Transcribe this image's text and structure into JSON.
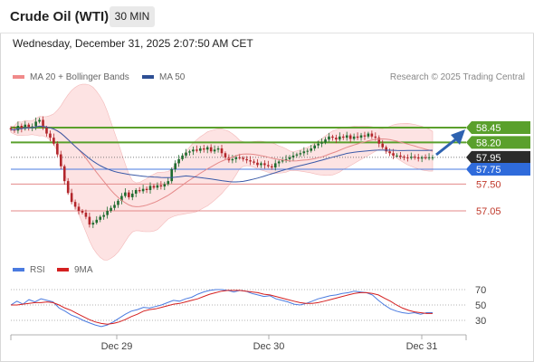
{
  "header": {
    "title": "Crude Oil (WTI)",
    "timeframe": "30 MIN",
    "datetime": "Wednesday, December 31, 2025 2:07:50 AM CET"
  },
  "legend": {
    "ma20_label": "MA 20 + Bollinger Bands",
    "ma50_label": "MA 50",
    "credit": "Research © 2025 Trading Central"
  },
  "rsi_legend": {
    "rsi_label": "RSI",
    "ma9_label": "9MA"
  },
  "colors": {
    "candle_up": "#1e6b2e",
    "candle_down": "#b3262b",
    "ma20": "#e58a8a",
    "bollinger_fill": "#fde3e3",
    "ma50": "#3a5aa8",
    "resistance": "#5aa02c",
    "pivot": "#4a7be0",
    "support": "#e38a8a",
    "last_price": "#333333",
    "arrow": "#2e62b0",
    "rsi": "#4a7be0",
    "rsi_ma9": "#d42020"
  },
  "chart_data": [
    {
      "type": "candlestick",
      "name": "price",
      "x_ticks": [
        "Dec 29",
        "Dec 30",
        "Dec 31"
      ],
      "ylim": [
        56.5,
        59.0
      ],
      "price_levels": [
        {
          "label": "58.45",
          "value": 58.45,
          "kind": "resistance"
        },
        {
          "label": "58.20",
          "value": 58.2,
          "kind": "resistance"
        },
        {
          "label": "57.95",
          "value": 57.95,
          "kind": "last"
        },
        {
          "label": "57.75",
          "value": 57.75,
          "kind": "pivot"
        },
        {
          "label": "57.50",
          "value": 57.5,
          "kind": "support"
        },
        {
          "label": "57.05",
          "value": 57.05,
          "kind": "support"
        }
      ],
      "close": [
        58.42,
        58.4,
        58.48,
        58.43,
        58.5,
        58.44,
        58.47,
        58.55,
        58.58,
        58.45,
        58.35,
        58.28,
        58.18,
        58.0,
        57.8,
        57.55,
        57.35,
        57.2,
        57.12,
        57.05,
        57.02,
        56.95,
        56.82,
        56.85,
        56.9,
        56.95,
        56.98,
        57.05,
        57.1,
        57.15,
        57.22,
        57.3,
        57.36,
        57.28,
        57.34,
        57.4,
        57.38,
        57.42,
        57.4,
        57.47,
        57.44,
        57.48,
        57.46,
        57.5,
        57.55,
        57.75,
        57.85,
        57.92,
        57.98,
        58.03,
        58.05,
        58.08,
        58.06,
        58.1,
        58.08,
        58.12,
        58.05,
        58.08,
        58.1,
        58.02,
        57.95,
        57.9,
        57.92,
        57.95,
        57.94,
        57.92,
        57.9,
        57.88,
        57.86,
        57.82,
        57.85,
        57.82,
        57.8,
        57.78,
        57.85,
        57.88,
        57.9,
        57.92,
        57.95,
        57.98,
        58.0,
        58.02,
        58.05,
        58.06,
        58.1,
        58.15,
        58.18,
        58.2,
        58.25,
        58.3,
        58.28,
        58.25,
        58.3,
        58.28,
        58.32,
        58.26,
        58.3,
        58.28,
        58.32,
        58.3,
        58.35,
        58.3,
        58.28,
        58.18,
        58.12,
        58.05,
        58.02,
        57.98,
        57.98,
        57.96,
        57.95,
        57.94,
        57.96,
        57.95,
        57.93,
        57.95,
        57.94,
        57.95,
        57.95
      ]
    },
    {
      "type": "line",
      "name": "RSI",
      "ylim": [
        20,
        80
      ],
      "y_ticks": [
        30,
        50,
        70
      ],
      "series": [
        {
          "name": "RSI",
          "values": [
            50,
            55,
            51,
            57,
            54,
            58,
            56,
            54,
            46,
            42,
            37,
            34,
            30,
            27,
            24,
            22,
            24,
            28,
            33,
            38,
            42,
            44,
            47,
            46,
            48,
            50,
            53,
            56,
            55,
            58,
            60,
            64,
            67,
            69,
            70,
            70,
            69,
            67,
            69,
            68,
            65,
            63,
            61,
            62,
            58,
            56,
            54,
            51,
            50,
            52,
            55,
            58,
            60,
            62,
            63,
            65,
            66,
            68,
            67,
            66,
            63,
            56,
            50,
            45,
            42,
            40,
            39,
            40,
            38,
            40,
            40
          ]
        },
        {
          "name": "9MA",
          "values": [
            50,
            50,
            51,
            52,
            53,
            53,
            54,
            53,
            50,
            46,
            43,
            39,
            35,
            31,
            28,
            26,
            25,
            26,
            28,
            31,
            35,
            38,
            42,
            44,
            45,
            47,
            49,
            51,
            52,
            54,
            56,
            58,
            61,
            64,
            66,
            68,
            69,
            69,
            69,
            68,
            67,
            66,
            64,
            63,
            61,
            59,
            57,
            55,
            53,
            52,
            52,
            53,
            55,
            57,
            59,
            61,
            63,
            65,
            66,
            66,
            65,
            63,
            59,
            55,
            50,
            46,
            43,
            41,
            40,
            39,
            39
          ]
        }
      ]
    }
  ]
}
